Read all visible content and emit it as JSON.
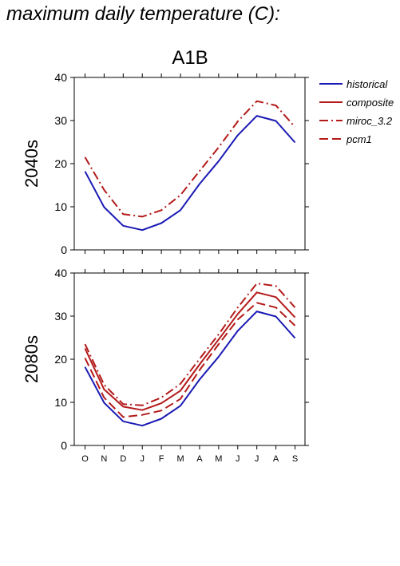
{
  "heading": "maximum daily temperature (C):",
  "chart_data": {
    "type": "line",
    "title": "A1B",
    "categories": [
      "O",
      "N",
      "D",
      "J",
      "F",
      "M",
      "A",
      "M",
      "J",
      "J",
      "A",
      "S"
    ],
    "ylim": [
      0,
      40
    ],
    "yticks": [
      0,
      10,
      20,
      30,
      40
    ],
    "grid": false,
    "legend": {
      "placement": "top-right, outside plot",
      "entries": [
        {
          "label": "historical",
          "color": "#1a1ab4",
          "dash": "solid"
        },
        {
          "label": "composite",
          "color": "#b41a1a",
          "dash": "solid"
        },
        {
          "label": "miroc_3.2",
          "color": "#b41a1a",
          "dash": "dashdot"
        },
        {
          "label": "pcm1",
          "color": "#b41a1a",
          "dash": "dashed"
        }
      ]
    },
    "panels": [
      {
        "ylabel": "2040s",
        "series": [
          {
            "name": "historical",
            "color": "#1a1ab4",
            "dash": "solid",
            "values": [
              18.2,
              9.9,
              5.6,
              4.6,
              6.2,
              9.2,
              15.3,
              20.6,
              26.6,
              31.1,
              29.9,
              24.9
            ]
          },
          {
            "name": "miroc_3.2",
            "color": "#b41a1a",
            "dash": "dashdot",
            "values": [
              21.5,
              13.9,
              8.3,
              7.7,
              9.2,
              12.7,
              18.3,
              23.8,
              29.8,
              34.5,
              33.5,
              28.5
            ]
          }
        ]
      },
      {
        "ylabel": "2080s",
        "series": [
          {
            "name": "historical",
            "color": "#1a1ab4",
            "dash": "solid",
            "values": [
              18.2,
              9.9,
              5.6,
              4.6,
              6.2,
              9.2,
              15.3,
              20.6,
              26.6,
              31.1,
              29.9,
              24.9
            ]
          },
          {
            "name": "composite",
            "color": "#b41a1a",
            "dash": "solid",
            "values": [
              22.5,
              13.0,
              9.0,
              8.2,
              9.8,
              12.7,
              18.8,
              24.6,
              30.5,
              35.5,
              34.4,
              29.7
            ]
          },
          {
            "name": "miroc_3.2",
            "color": "#b41a1a",
            "dash": "dashdot",
            "values": [
              23.5,
              14.1,
              9.6,
              9.3,
              11.1,
              14.3,
              20.1,
              25.8,
              32.0,
              37.6,
              37.0,
              32.0
            ]
          },
          {
            "name": "pcm1",
            "color": "#b41a1a",
            "dash": "dashed",
            "values": [
              20.3,
              11.1,
              6.6,
              7.1,
              8.1,
              10.8,
              17.5,
              23.5,
              29.2,
              33.1,
              32.0,
              27.8
            ]
          }
        ]
      }
    ]
  }
}
